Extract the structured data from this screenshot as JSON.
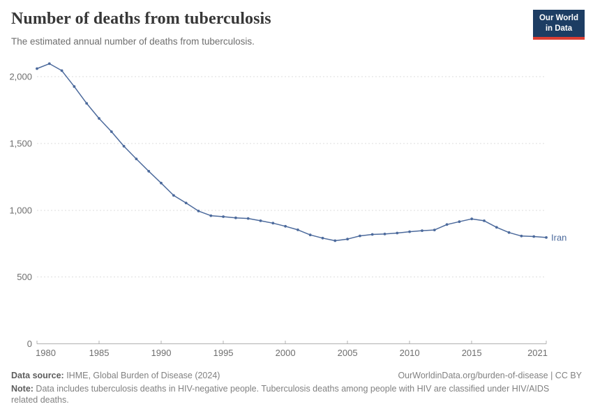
{
  "header": {
    "title": "Number of deaths from tuberculosis",
    "subtitle": "The estimated annual number of deaths from tuberculosis.",
    "logo": {
      "line1": "Our World",
      "line2": "in Data",
      "bg_color": "#1d3d63",
      "accent_color": "#dc3e33"
    }
  },
  "chart_data": {
    "type": "line",
    "title": "Number of deaths from tuberculosis",
    "xlabel": "",
    "ylabel": "",
    "xlim": [
      1980,
      2021
    ],
    "ylim": [
      0,
      2100
    ],
    "grid": "horizontal-dashed",
    "legend_position": "end-of-line-label",
    "x_ticks": [
      {
        "value": 1980,
        "label": "1980",
        "align": "start"
      },
      {
        "value": 1985,
        "label": "1985",
        "align": "middle"
      },
      {
        "value": 1990,
        "label": "1990",
        "align": "middle"
      },
      {
        "value": 1995,
        "label": "1995",
        "align": "middle"
      },
      {
        "value": 2000,
        "label": "2000",
        "align": "middle"
      },
      {
        "value": 2005,
        "label": "2005",
        "align": "middle"
      },
      {
        "value": 2010,
        "label": "2010",
        "align": "middle"
      },
      {
        "value": 2015,
        "label": "2015",
        "align": "middle"
      },
      {
        "value": 2021,
        "label": "2021",
        "align": "end"
      }
    ],
    "y_ticks": [
      {
        "value": 0,
        "label": "0"
      },
      {
        "value": 500,
        "label": "500"
      },
      {
        "value": 1000,
        "label": "1,000"
      },
      {
        "value": 1500,
        "label": "1,500"
      },
      {
        "value": 2000,
        "label": "2,000"
      }
    ],
    "series": [
      {
        "name": "Iran",
        "color": "#4c6a9c",
        "x": [
          1980,
          1981,
          1982,
          1983,
          1984,
          1985,
          1986,
          1987,
          1988,
          1989,
          1990,
          1991,
          1992,
          1993,
          1994,
          1995,
          1996,
          1997,
          1998,
          1999,
          2000,
          2001,
          2002,
          2003,
          2004,
          2005,
          2006,
          2007,
          2008,
          2009,
          2010,
          2011,
          2012,
          2013,
          2014,
          2015,
          2016,
          2017,
          2018,
          2019,
          2020,
          2021
        ],
        "values": [
          2060,
          2097,
          2045,
          1926,
          1800,
          1687,
          1588,
          1479,
          1384,
          1292,
          1203,
          1111,
          1054,
          994,
          959,
          952,
          943,
          938,
          921,
          903,
          880,
          853,
          815,
          791,
          772,
          784,
          808,
          819,
          822,
          829,
          839,
          847,
          852,
          893,
          914,
          935,
          921,
          872,
          833,
          807,
          803,
          796
        ]
      }
    ],
    "axis_colors": {
      "grid": "#dedede",
      "axis": "#b0b0b0",
      "tick_label": "#6e6e6e"
    }
  },
  "footer": {
    "datasource_label": "Data source:",
    "datasource_text": " IHME, Global Burden of Disease (2024)",
    "link_text": "OurWorldinData.org/burden-of-disease | CC BY",
    "note_label": "Note:",
    "note_text": " Data includes tuberculosis deaths in HIV-negative people. Tuberculosis deaths among people with HIV are classified under HIV/AIDS related deaths."
  }
}
